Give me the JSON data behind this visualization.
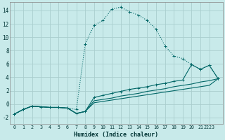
{
  "xlabel": "Humidex (Indice chaleur)",
  "bg_color": "#c8eaea",
  "grid_color": "#aacece",
  "line_color": "#006666",
  "xlim": [
    -0.5,
    23.5
  ],
  "ylim": [
    -3.0,
    15.2
  ],
  "xtick_labels": [
    "0",
    "1",
    "2",
    "3",
    "4",
    "5",
    "6",
    "7",
    "8",
    "9",
    "10",
    "11",
    "12",
    "13",
    "14",
    "15",
    "16",
    "17",
    "18",
    "19",
    "20",
    "21",
    "2223"
  ],
  "xtick_pos": [
    0,
    1,
    2,
    3,
    4,
    5,
    6,
    7,
    8,
    9,
    10,
    11,
    12,
    13,
    14,
    15,
    16,
    17,
    18,
    19,
    20,
    21,
    22
  ],
  "yticks": [
    -2,
    0,
    2,
    4,
    6,
    8,
    10,
    12,
    14
  ],
  "s1_x": [
    0,
    1,
    2,
    3,
    4,
    5,
    6,
    7,
    8,
    9,
    10,
    11,
    12,
    13,
    14,
    15,
    16,
    17,
    18,
    19,
    20,
    21,
    22,
    23
  ],
  "s1_y": [
    -1.5,
    -0.8,
    -0.3,
    -0.4,
    -0.5,
    -0.5,
    -0.6,
    -0.8,
    9.0,
    11.8,
    12.5,
    14.2,
    14.5,
    13.8,
    13.3,
    12.5,
    11.2,
    8.7,
    7.2,
    6.8,
    5.9,
    5.2,
    5.8,
    3.8
  ],
  "s2_x": [
    0,
    1,
    2,
    3,
    4,
    5,
    6,
    7,
    8,
    9,
    10,
    11,
    12,
    13,
    14,
    15,
    16,
    17,
    18,
    19,
    20,
    21,
    22,
    23
  ],
  "s2_y": [
    -1.5,
    -0.8,
    -0.3,
    -0.4,
    -0.5,
    -0.5,
    -0.6,
    -1.4,
    -1.1,
    1.0,
    1.3,
    1.6,
    1.9,
    2.2,
    2.4,
    2.6,
    2.9,
    3.1,
    3.4,
    3.6,
    5.9,
    5.2,
    5.8,
    3.8
  ],
  "s3_x": [
    0,
    1,
    2,
    3,
    4,
    5,
    6,
    7,
    8,
    9,
    10,
    11,
    12,
    13,
    14,
    15,
    16,
    17,
    18,
    19,
    20,
    21,
    22,
    23
  ],
  "s3_y": [
    -1.5,
    -0.8,
    -0.3,
    -0.4,
    -0.5,
    -0.5,
    -0.6,
    -1.4,
    -1.1,
    0.5,
    0.7,
    0.9,
    1.2,
    1.4,
    1.6,
    1.9,
    2.1,
    2.3,
    2.6,
    2.8,
    3.0,
    3.3,
    3.5,
    3.8
  ],
  "s4_x": [
    0,
    1,
    2,
    3,
    4,
    5,
    6,
    7,
    8,
    9,
    10,
    11,
    12,
    13,
    14,
    15,
    16,
    17,
    18,
    19,
    20,
    21,
    22,
    23
  ],
  "s4_y": [
    -1.5,
    -0.8,
    -0.3,
    -0.4,
    -0.5,
    -0.5,
    -0.6,
    -1.4,
    -1.1,
    0.2,
    0.4,
    0.6,
    0.8,
    1.0,
    1.2,
    1.4,
    1.6,
    1.8,
    2.0,
    2.2,
    2.4,
    2.6,
    2.8,
    3.8
  ]
}
